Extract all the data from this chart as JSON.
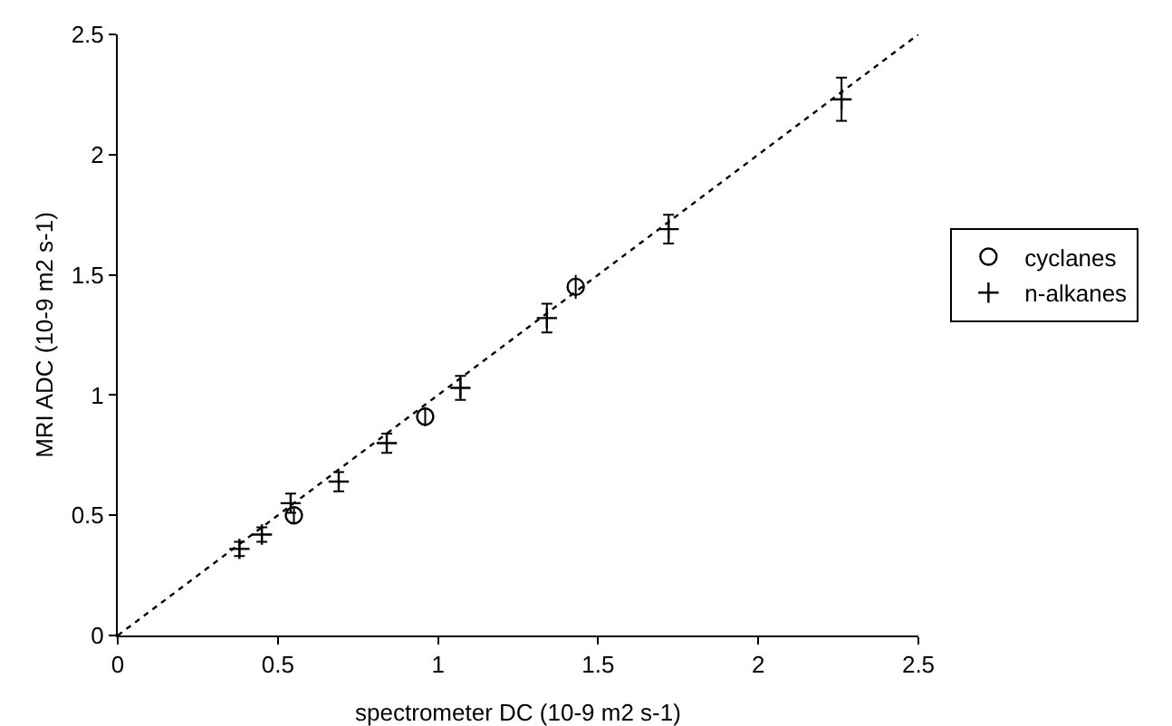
{
  "chart_data": {
    "type": "scatter",
    "xlabel": "spectrometer DC (10-9 m2 s-1)",
    "ylabel": "MRI ADC (10-9 m2 s-1)",
    "xlim": [
      0,
      2.5
    ],
    "ylim": [
      0,
      2.5
    ],
    "xticks": [
      0,
      0.5,
      1,
      1.5,
      2,
      2.5
    ],
    "yticks": [
      0,
      0.5,
      1,
      1.5,
      2,
      2.5
    ],
    "grid": false,
    "legend": "right",
    "series": [
      {
        "name": "cyclanes",
        "color": "#000000",
        "marker": "circle",
        "x": [
          0.55,
          0.96,
          1.43
        ],
        "values": [
          0.5,
          0.91,
          1.45
        ],
        "errors": [
          0.03,
          0.04,
          0.05
        ]
      },
      {
        "name": "n-alkanes",
        "color": "#000000",
        "marker": "cross",
        "x": [
          0.38,
          0.45,
          0.54,
          0.69,
          0.84,
          1.07,
          1.34,
          1.72,
          2.26
        ],
        "values": [
          0.36,
          0.42,
          0.55,
          0.64,
          0.8,
          1.03,
          1.32,
          1.69,
          2.23
        ],
        "errors": [
          0.03,
          0.03,
          0.04,
          0.04,
          0.04,
          0.05,
          0.06,
          0.06,
          0.09
        ]
      },
      {
        "type": "line",
        "color": "#000000",
        "line_style": "dotted",
        "x": [
          0,
          2.5
        ],
        "values": [
          0,
          2.5
        ]
      }
    ]
  }
}
